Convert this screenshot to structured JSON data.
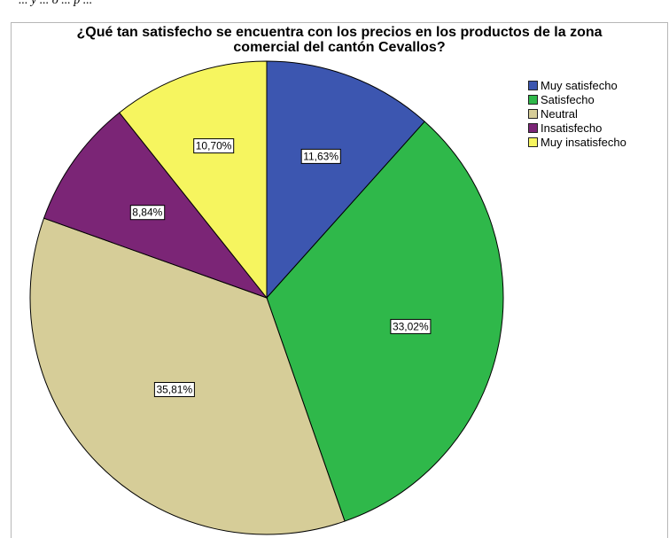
{
  "caption": "... y ... o ... p ...",
  "chart_data": {
    "type": "pie",
    "title": "¿Qué tan satisfecho se encuentra con los precios en los productos de la zona comercial del cantón Cevallos?",
    "title_lines": [
      "¿Qué tan satisfecho se encuentra con los precios en los productos de la zona",
      "comercial del cantón Cevallos?"
    ],
    "legend_position": "right",
    "slices": [
      {
        "name": "Muy satisfecho",
        "value": 11.63,
        "label": "11,63%",
        "color": "#3c56b0"
      },
      {
        "name": "Satisfecho",
        "value": 33.02,
        "label": "33,02%",
        "color": "#2fb84a"
      },
      {
        "name": "Neutral",
        "value": 35.81,
        "label": "35,81%",
        "color": "#d6cd98"
      },
      {
        "name": "Insatisfecho",
        "value": 8.84,
        "label": "8,84%",
        "color": "#7b2576"
      },
      {
        "name": "Muy insatisfecho",
        "value": 10.7,
        "label": "10,70%",
        "color": "#f6f55f"
      }
    ]
  }
}
